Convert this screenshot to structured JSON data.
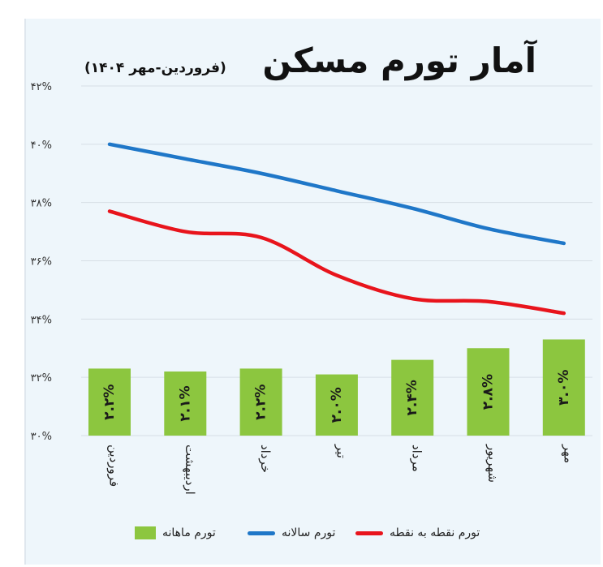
{
  "title": "آمار تورم مسکن",
  "subtitle": "(فروردین-مهر ۱۴۰۴)",
  "chart_data": {
    "type": "bar",
    "categories": [
      "فروردین",
      "اردیبهشت",
      "خرداد",
      "تیر",
      "مرداد",
      "شهریور",
      "مهر"
    ],
    "ylim": [
      30,
      42
    ],
    "yticks": [
      30,
      32,
      34,
      36,
      38,
      40,
      42
    ],
    "ytick_labels": [
      "۳۰%",
      "۳۲%",
      "۳۴%",
      "۳۶%",
      "۳۸%",
      "۴۰%",
      "۴۲%"
    ],
    "bars": {
      "name": "تورم ماهانه",
      "color": "#8cc63f",
      "values": [
        2.2,
        2.1,
        2.2,
        2.0,
        2.4,
        2.8,
        3.0
      ],
      "labels": [
        "۲.۲%",
        "۲.۱%",
        "۲.۲%",
        "۲.۰%",
        "۲.۴%",
        "۲.۸%",
        "۳.۰%"
      ],
      "display_y": [
        32.3,
        32.2,
        32.3,
        32.1,
        32.6,
        33.0,
        33.3
      ]
    },
    "series": [
      {
        "name": "تورم سالانه",
        "color": "#1f77c8",
        "values": [
          40.0,
          39.5,
          39.0,
          38.4,
          37.8,
          37.1,
          36.6
        ]
      },
      {
        "name": "تورم نقطه به نقطه",
        "color": "#e8141c",
        "values": [
          37.7,
          37.0,
          36.8,
          35.5,
          34.7,
          34.6,
          34.2
        ]
      }
    ],
    "legend_position": "bottom",
    "grid": true
  }
}
